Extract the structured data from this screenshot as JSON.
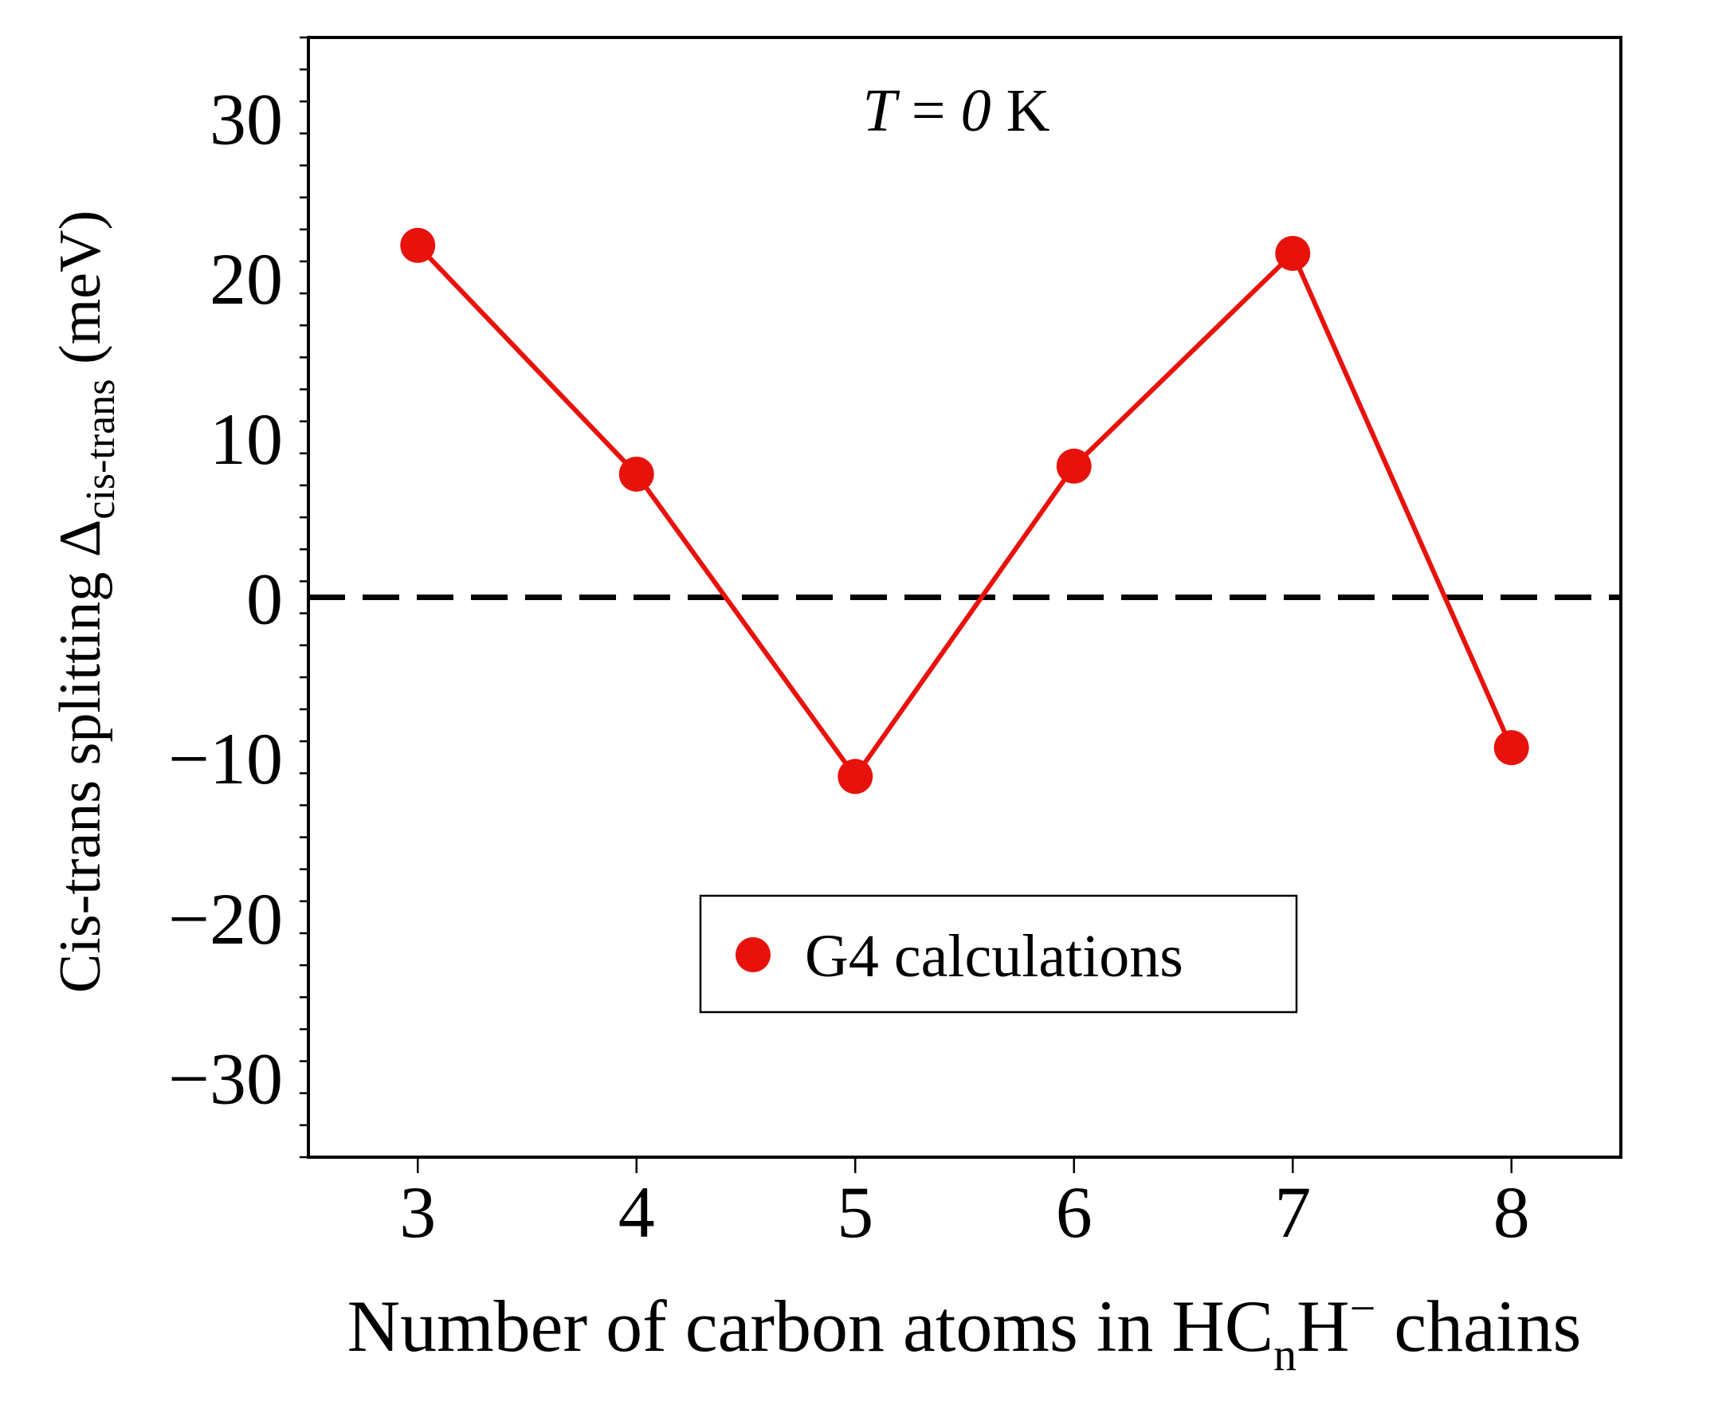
{
  "chart_data": {
    "type": "line",
    "annotation": {
      "var": "T",
      "eq": " = ",
      "val": "0",
      "unit": " K"
    },
    "xlabel": {
      "main": "Number of carbon atoms in HC",
      "sub": "n",
      "mid": "H",
      "sup": "−",
      "end": " chains"
    },
    "ylabel": {
      "main": "Cis-trans splitting Δ",
      "sub": "cis-trans",
      "end": " (meV)"
    },
    "xlim": [
      2.5,
      8.5
    ],
    "ylim": [
      -35,
      35
    ],
    "x_ticks": [
      3,
      4,
      5,
      6,
      7,
      8
    ],
    "y_ticks": [
      -30,
      -20,
      -10,
      0,
      10,
      20,
      30
    ],
    "y_tick_labels": [
      "−30",
      "−20",
      "−10",
      "0",
      "10",
      "20",
      "30"
    ],
    "series": [
      {
        "name": "G4 calculations",
        "color": "#e8120c",
        "marker": "circle",
        "x": [
          3,
          4,
          5,
          6,
          7,
          8
        ],
        "y": [
          22.0,
          7.7,
          -11.2,
          8.2,
          21.5,
          -9.4
        ]
      }
    ],
    "reference_line": {
      "y": 0,
      "style": "dashed",
      "color": "#000000"
    },
    "legend": {
      "position": "bottom-center"
    },
    "grid": false
  }
}
